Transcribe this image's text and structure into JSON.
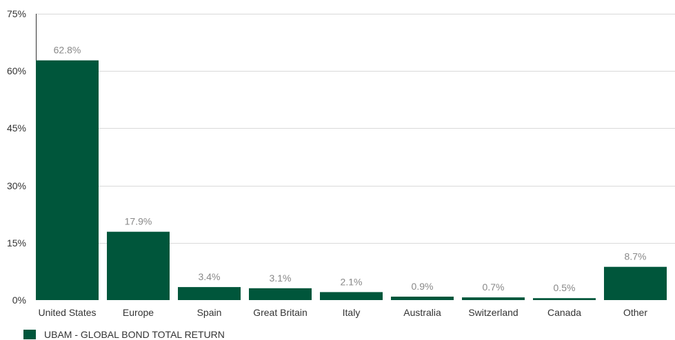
{
  "chart_data": {
    "type": "bar",
    "categories": [
      "United States",
      "Europe",
      "Spain",
      "Great Britain",
      "Italy",
      "Australia",
      "Switzerland",
      "Canada",
      "Other"
    ],
    "series": [
      {
        "name": "UBAM - GLOBAL BOND TOTAL RETURN",
        "values": [
          62.8,
          17.9,
          3.4,
          3.1,
          2.1,
          0.9,
          0.7,
          0.5,
          8.7
        ],
        "value_labels": [
          "62.8%",
          "17.9%",
          "3.4%",
          "3.1%",
          "2.1%",
          "0.9%",
          "0.7%",
          "0.5%",
          "8.7%"
        ]
      }
    ],
    "yticks": [
      0,
      15,
      30,
      45,
      60,
      75
    ],
    "ytick_labels": [
      "0%",
      "15%",
      "30%",
      "45%",
      "60%",
      "75%"
    ],
    "ylim": [
      0,
      75
    ],
    "grid": true,
    "legend_position": "bottom-left",
    "bar_color": "#00563b",
    "grid_color": "#d9d9d9",
    "axis_color": "#333333"
  }
}
